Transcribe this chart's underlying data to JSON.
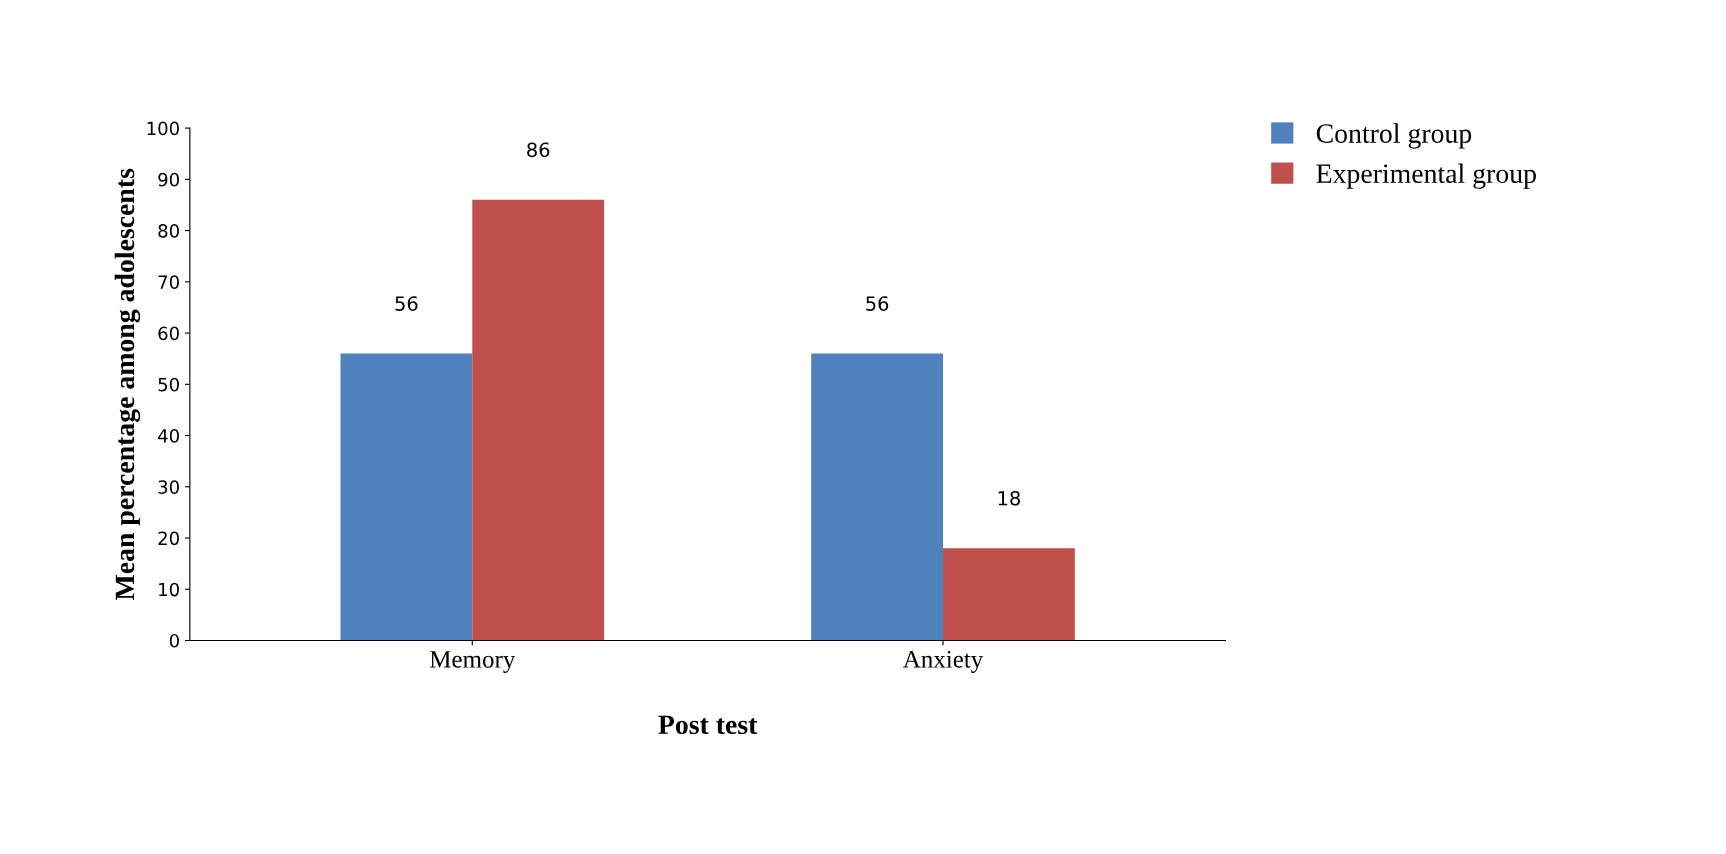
{
  "chart_data": {
    "type": "bar",
    "xlabel": "Post test",
    "ylabel": "Mean percentage among adolescents",
    "categories": [
      "Memory",
      "Anxiety"
    ],
    "series": [
      {
        "name": "Control group",
        "color": "#4f81bd",
        "values": [
          56,
          56
        ]
      },
      {
        "name": "Experimental group",
        "color": "#c0504d",
        "values": [
          86,
          18
        ]
      }
    ],
    "ylim": [
      0,
      100
    ],
    "yticks": [
      0,
      10,
      20,
      30,
      40,
      50,
      60,
      70,
      80,
      90,
      100
    ],
    "data_labels": true,
    "grid": false,
    "legend": "top right"
  }
}
